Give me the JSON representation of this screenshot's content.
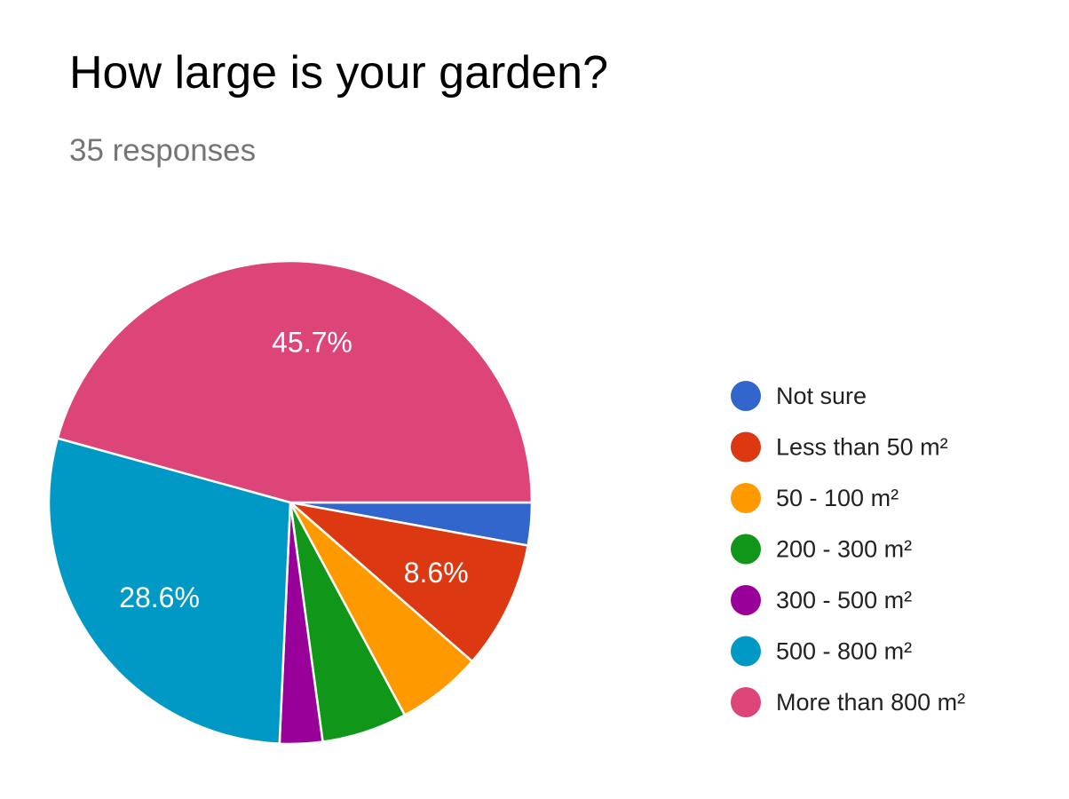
{
  "title": "How large is your garden?",
  "subtitle": "35 responses",
  "chart_data": {
    "type": "pie",
    "title": "How large is your garden?",
    "subtitle": "35 responses",
    "legend_position": "right",
    "slices": [
      {
        "label": "Not sure",
        "value": 1,
        "color": "#3366cc",
        "percent_label": ""
      },
      {
        "label": "Less than 50 m²",
        "value": 3,
        "color": "#dc3912",
        "percent_label": "8.6%"
      },
      {
        "label": "50 - 100 m²",
        "value": 2,
        "color": "#ff9900",
        "percent_label": ""
      },
      {
        "label": "200 - 300 m²",
        "value": 2,
        "color": "#109618",
        "percent_label": ""
      },
      {
        "label": "300 - 500 m²",
        "value": 1,
        "color": "#990099",
        "percent_label": ""
      },
      {
        "label": "500 - 800 m²",
        "value": 10,
        "color": "#0099c6",
        "percent_label": "28.6%"
      },
      {
        "label": "More than 800 m²",
        "value": 16,
        "color": "#dd4477",
        "percent_label": "45.7%"
      }
    ]
  }
}
